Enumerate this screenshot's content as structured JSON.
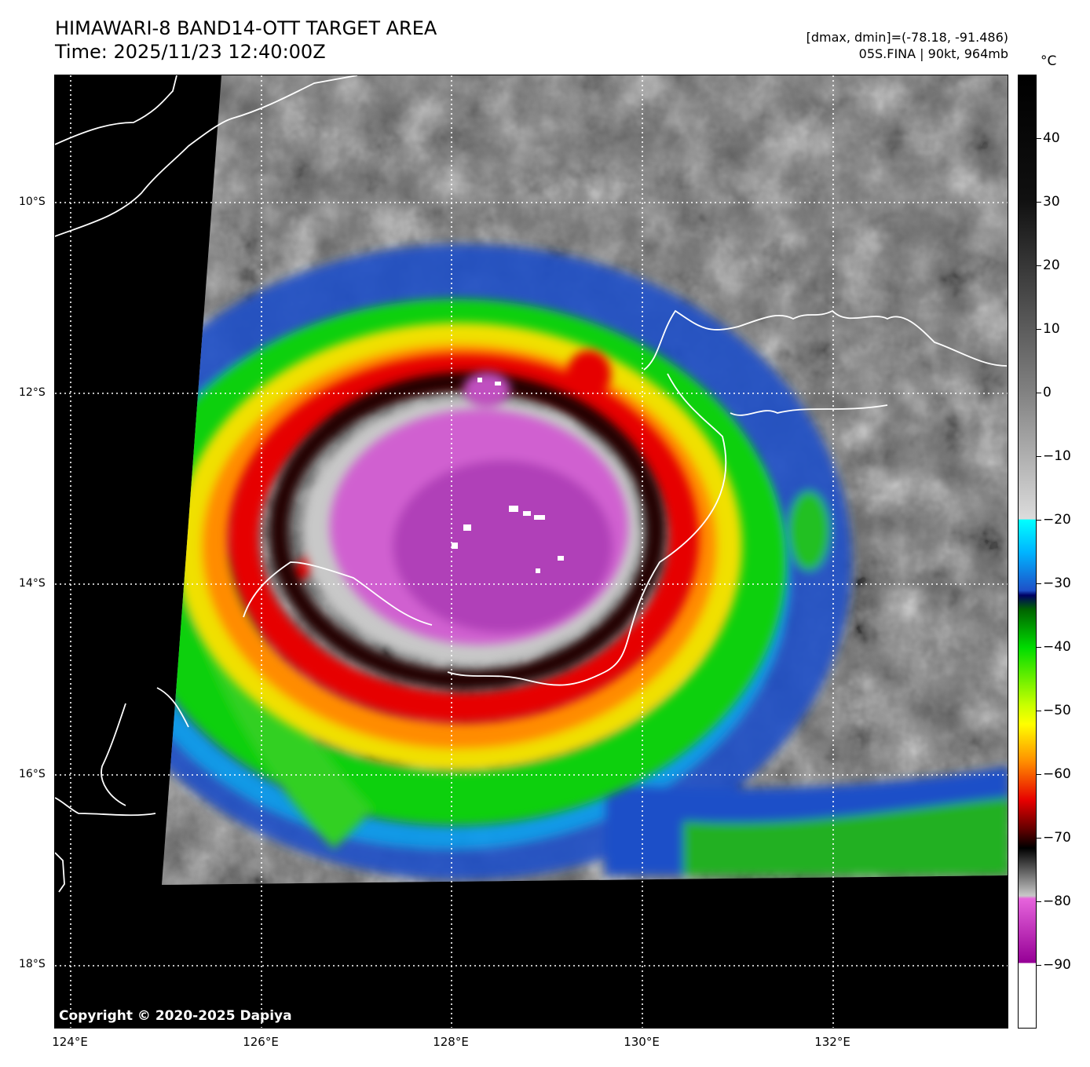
{
  "header": {
    "title_line1": "HIMAWARI-8 BAND14-OTT TARGET AREA",
    "title_line2": "Time: 2025/11/23 12:40:00Z",
    "range_text": "[dmax, dmin]=(-78.18, -91.486)",
    "storm_text": "05S.FINA | 90kt, 964mb"
  },
  "map": {
    "lat_labels": [
      "10°S",
      "12°S",
      "14°S",
      "16°S",
      "18°S"
    ],
    "lon_labels": [
      "124°E",
      "126°E",
      "128°E",
      "130°E",
      "132°E"
    ],
    "copyright": "Copyright © 2020-2025 Dapiya",
    "grid_color": "#ffffff",
    "coastline_color": "#ffffff",
    "no_data_color": "#000000"
  },
  "colorbar": {
    "unit": "°C",
    "labels": [
      "40",
      "30",
      "20",
      "10",
      "0",
      "−10",
      "−20",
      "−30",
      "−40",
      "−50",
      "−60",
      "−70",
      "−80",
      "−90"
    ],
    "tick_values": [
      40,
      30,
      20,
      10,
      0,
      -10,
      -20,
      -30,
      -40,
      -50,
      -60,
      -70,
      -80,
      -90
    ],
    "range": [
      -100,
      50
    ],
    "colors": {
      "warm_black": "#000000",
      "gray_mid": "#808080",
      "light_gray": "#dcdcdc",
      "cyan": "#00ffff",
      "blue": "#1e50c8",
      "navy": "#000064",
      "green": "#00dc00",
      "yellow": "#ffff00",
      "orange": "#ff8c00",
      "red": "#e60000",
      "dark_red": "#640000",
      "magenta_light": "#e664dc",
      "purple": "#960096",
      "white": "#ffffff"
    }
  }
}
